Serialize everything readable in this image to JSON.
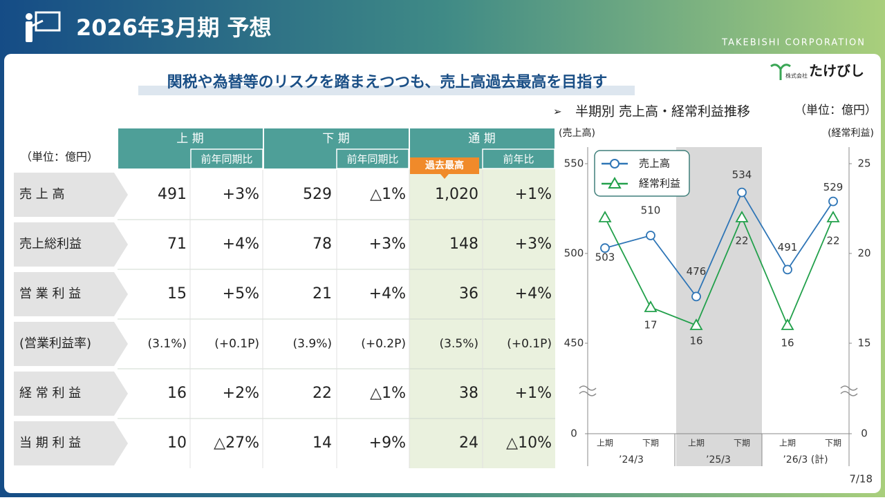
{
  "header": {
    "title": "2026年3月期 予想",
    "company": "TAKEBISHI CORPORATION",
    "subtitle": "関税や為替等のリスクを踏まえつつも、売上高過去最高を目指す",
    "logo_small": "株式会社",
    "logo": "たけびし",
    "page": "7/18"
  },
  "table": {
    "unit": "（単位：億円）",
    "groups": [
      "上 期",
      "下 期",
      "通 期"
    ],
    "subheaders": [
      "前年同期比",
      "前年同期比",
      "前年比"
    ],
    "badge": "過去最高",
    "rows": [
      {
        "label": "売 上 高",
        "cells": [
          "491",
          "+3%",
          "529",
          "△1%",
          "1,020",
          "+1%"
        ]
      },
      {
        "label": "売上総利益",
        "cells": [
          "71",
          "+4%",
          "78",
          "+3%",
          "148",
          "+3%"
        ]
      },
      {
        "label": "営 業 利 益",
        "cells": [
          "15",
          "+5%",
          "21",
          "+4%",
          "36",
          "+4%"
        ]
      },
      {
        "label": "(営業利益率)",
        "cells": [
          "(3.1%)",
          "(+0.1P)",
          "(3.9%)",
          "(+0.2P)",
          "(3.5%)",
          "(+0.1P)"
        ]
      },
      {
        "label": "経 常 利 益",
        "cells": [
          "16",
          "+2%",
          "22",
          "△1%",
          "38",
          "+1%"
        ]
      },
      {
        "label": "当 期 利 益",
        "cells": [
          "10",
          "△27%",
          "14",
          "+9%",
          "24",
          "△10%"
        ]
      }
    ]
  },
  "chart_data": {
    "type": "line",
    "title": "半期別 売上高・経常利益推移",
    "unit": "（単位：億円）",
    "ylabel": "(売上高)",
    "y2label": "(経常利益)",
    "categories": [
      "上期",
      "下期",
      "上期",
      "下期",
      "上期",
      "下期"
    ],
    "groups": [
      "’24/3",
      "’25/3",
      "’26/3 (計)"
    ],
    "series": [
      {
        "name": "売上高",
        "color": "#2e75b6",
        "marker": "circle",
        "values": [
          503,
          510,
          476,
          534,
          491,
          529
        ]
      },
      {
        "name": "経常利益",
        "color": "#22a04b",
        "marker": "triangle",
        "axis": "y2",
        "values": [
          22,
          17,
          16,
          22,
          16,
          22
        ]
      }
    ],
    "ylim": [
      450,
      550
    ],
    "yticks": [
      0,
      450,
      500,
      550
    ],
    "y2lim": [
      15,
      25
    ],
    "y2ticks": [
      0,
      15,
      20,
      25
    ],
    "axis_break": true,
    "highlight_group": 1
  }
}
